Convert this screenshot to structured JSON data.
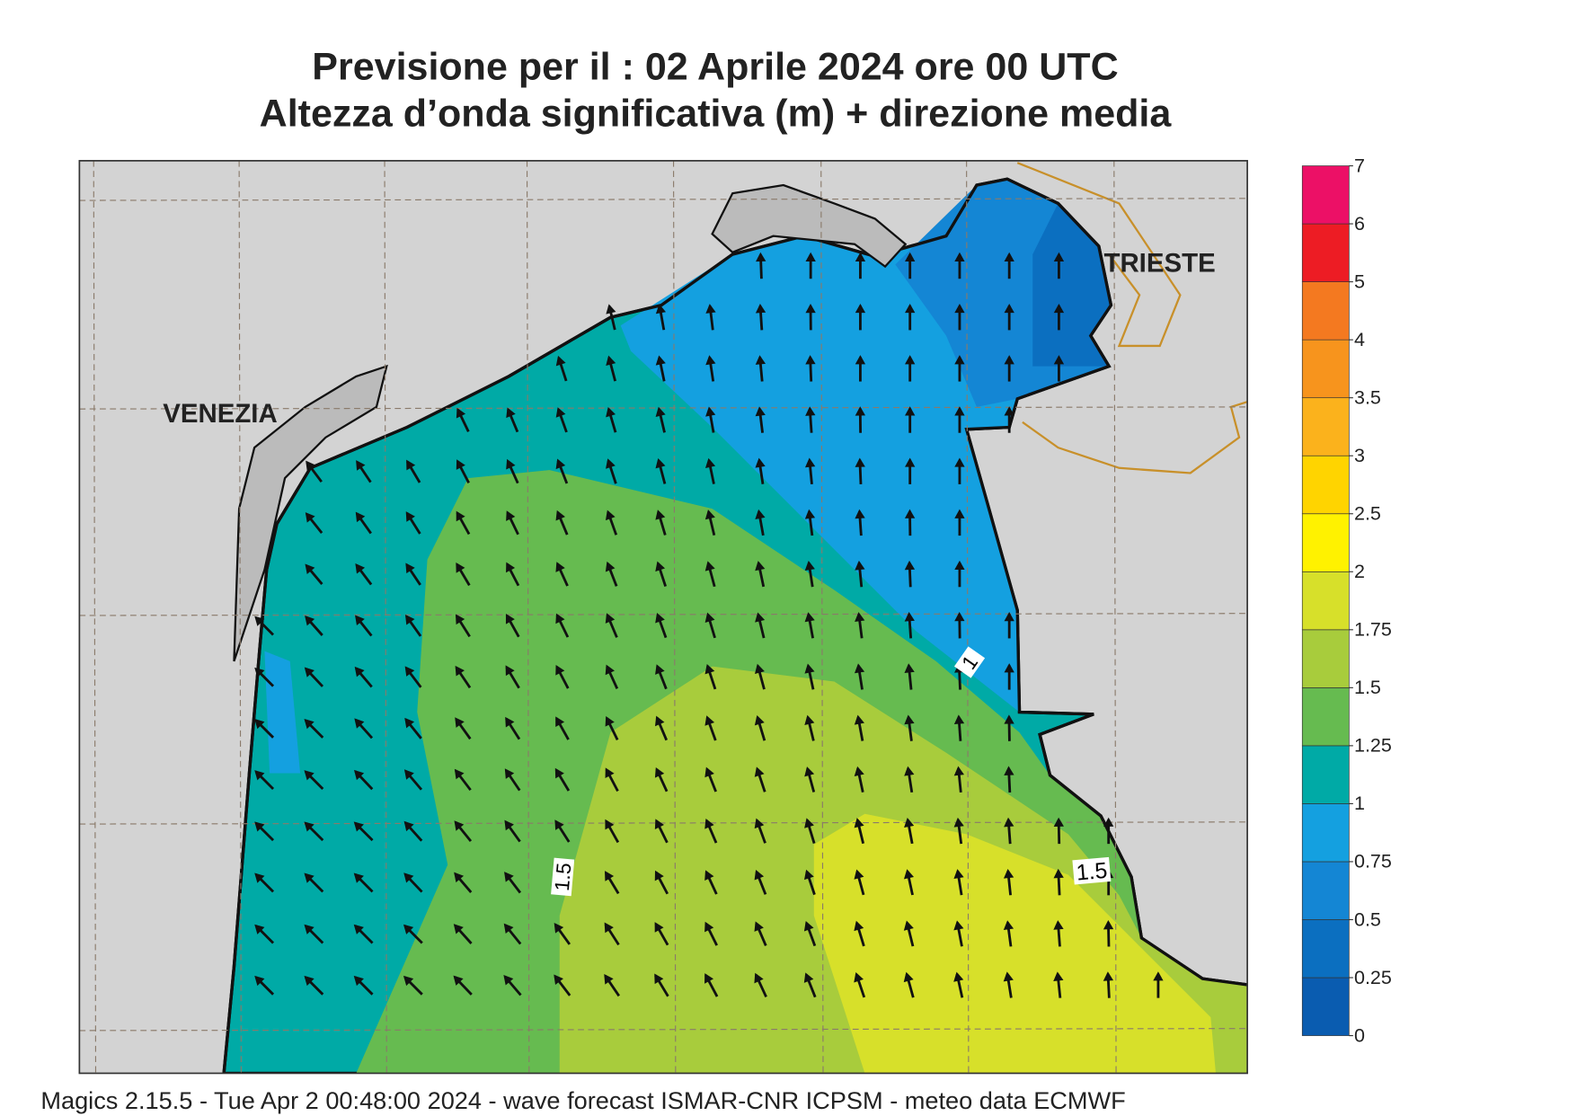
{
  "header": {
    "title": "Previsione per il  :  02   Aprile  2024   ore 00 UTC",
    "subtitle": "Altezza d’onda significativa (m) + direzione media"
  },
  "map": {
    "places": [
      "VENEZIA",
      "TRIESTE"
    ],
    "contour_labels": [
      "1",
      "1.5",
      "1.5"
    ]
  },
  "colorbar": {
    "levels": [
      0,
      0.25,
      0.5,
      0.75,
      1,
      1.25,
      1.5,
      1.75,
      2,
      2.5,
      3,
      3.5,
      4,
      5,
      6,
      7
    ],
    "colors": [
      "#0a5cb0",
      "#0b6fc0",
      "#1486d4",
      "#14a0e0",
      "#00aaa6",
      "#66bb50",
      "#a8cc3c",
      "#d7e02a",
      "#fff200",
      "#ffd400",
      "#fbb21c",
      "#f7941d",
      "#f47920",
      "#ed1c24",
      "#ec1066"
    ]
  },
  "footer": "Magics 2.15.5 - Tue Apr  2 00:48:00 2024 - wave forecast  ISMAR-CNR  ICPSM - meteo data   ECMWF"
}
